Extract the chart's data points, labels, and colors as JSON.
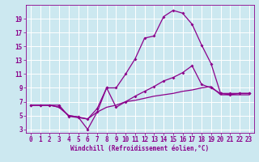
{
  "xlabel": "Windchill (Refroidissement éolien,°C)",
  "bg_color": "#cce8f0",
  "line_color": "#8b008b",
  "grid_color": "#ffffff",
  "x_min": -0.5,
  "x_max": 23.5,
  "y_min": 2.5,
  "y_max": 21.0,
  "yticks": [
    3,
    5,
    7,
    9,
    11,
    13,
    15,
    17,
    19
  ],
  "xticks": [
    0,
    1,
    2,
    3,
    4,
    5,
    6,
    7,
    8,
    9,
    10,
    11,
    12,
    13,
    14,
    15,
    16,
    17,
    18,
    19,
    20,
    21,
    22,
    23
  ],
  "line_upper_x": [
    0,
    1,
    2,
    3,
    4,
    5,
    6,
    7,
    8,
    9,
    10,
    11,
    12,
    13,
    14,
    15,
    16,
    17,
    18,
    19,
    20,
    21,
    22,
    23
  ],
  "line_upper_y": [
    6.5,
    6.5,
    6.5,
    6.5,
    4.9,
    4.7,
    4.5,
    6.0,
    9.0,
    9.0,
    11.0,
    13.2,
    16.2,
    16.5,
    19.3,
    20.2,
    19.8,
    18.2,
    15.2,
    12.5,
    8.2,
    8.2,
    8.2,
    8.2
  ],
  "line_mid_x": [
    0,
    1,
    2,
    3,
    4,
    5,
    6,
    7,
    8,
    9,
    10,
    11,
    12,
    13,
    14,
    15,
    16,
    17,
    18,
    19,
    20,
    21,
    22,
    23
  ],
  "line_mid_y": [
    6.5,
    6.5,
    6.5,
    6.2,
    5.0,
    4.8,
    3.0,
    5.5,
    9.0,
    6.2,
    7.0,
    7.8,
    8.5,
    9.2,
    10.0,
    10.5,
    11.2,
    12.2,
    9.5,
    9.0,
    8.2,
    8.0,
    8.2,
    8.2
  ],
  "line_low_x": [
    0,
    1,
    2,
    3,
    4,
    5,
    6,
    7,
    8,
    9,
    10,
    11,
    12,
    13,
    14,
    15,
    16,
    17,
    18,
    19,
    20,
    21,
    22,
    23
  ],
  "line_low_y": [
    6.5,
    6.5,
    6.5,
    6.2,
    5.0,
    4.8,
    4.5,
    5.5,
    6.2,
    6.5,
    7.0,
    7.2,
    7.5,
    7.8,
    8.0,
    8.2,
    8.5,
    8.7,
    9.0,
    9.2,
    8.0,
    8.0,
    8.0,
    8.0
  ],
  "lw": 0.9,
  "ms": 2.0,
  "tick_fontsize": 5.5,
  "xlabel_fontsize": 5.5
}
